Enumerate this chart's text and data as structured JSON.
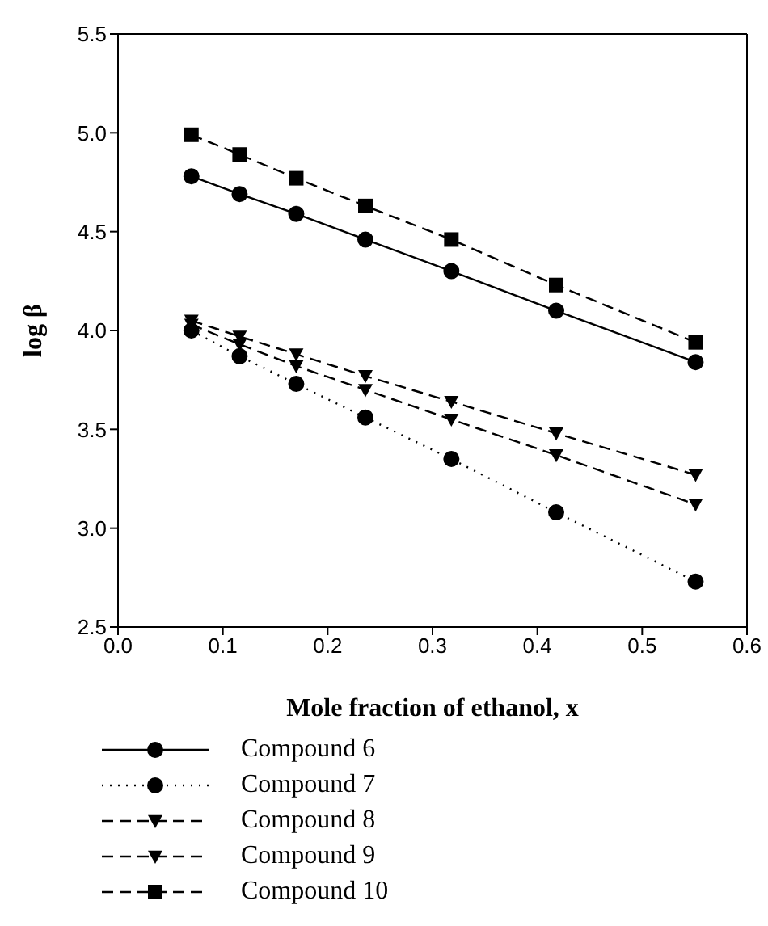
{
  "chart_data": {
    "type": "line",
    "xlabel": "Mole fraction of ethanol, x",
    "ylabel": "log β",
    "x": [
      0.07,
      0.116,
      0.17,
      0.236,
      0.318,
      0.418,
      0.551
    ],
    "xlim": [
      0,
      0.6
    ],
    "xticks": [
      {
        "value": 0,
        "label": "0.0"
      },
      0.1,
      0.2,
      0.3,
      0.4,
      0.5,
      0.6
    ],
    "ylim": [
      2.5,
      5.5
    ],
    "yticks": [
      2.5,
      {
        "value": 3,
        "label": "3.0"
      },
      3.5,
      {
        "value": 4,
        "label": "4.0"
      },
      4.5,
      {
        "value": 5,
        "label": "5.0"
      },
      5.5
    ],
    "grid": false,
    "legend": "bottom",
    "series": [
      {
        "name": "Compound 6",
        "color": "#000000",
        "marker": "circle",
        "line_style": "solid",
        "values": [
          4.78,
          4.69,
          4.59,
          4.46,
          4.3,
          4.1,
          3.84
        ]
      },
      {
        "name": "Compound 7",
        "color": "#000000",
        "marker": "circle",
        "line_style": "dotted",
        "values": [
          4.0,
          3.87,
          3.73,
          3.56,
          3.35,
          3.08,
          2.73
        ]
      },
      {
        "name": "Compound 8",
        "color": "#000000",
        "marker": "triangle",
        "line_style": "dashed",
        "values": [
          4.05,
          3.97,
          3.88,
          3.77,
          3.64,
          3.48,
          3.27
        ]
      },
      {
        "name": "Compound 9",
        "color": "#000000",
        "marker": "triangle",
        "line_style": "dashed",
        "values": [
          4.03,
          3.93,
          3.82,
          3.7,
          3.55,
          3.37,
          3.12
        ]
      },
      {
        "name": "Compound 10",
        "color": "#000000",
        "marker": "square",
        "line_style": "dashed",
        "values": [
          4.99,
          4.89,
          4.77,
          4.63,
          4.46,
          4.23,
          3.94
        ]
      }
    ]
  }
}
